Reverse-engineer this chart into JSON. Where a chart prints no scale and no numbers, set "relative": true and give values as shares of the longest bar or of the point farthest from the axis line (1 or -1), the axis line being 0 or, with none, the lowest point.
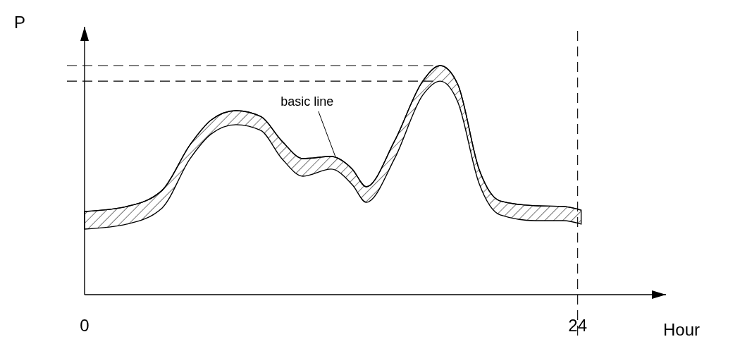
{
  "chart_data": {
    "type": "line",
    "relative": true,
    "xlabel": "Hour",
    "ylabel": "P",
    "x": [
      0,
      2.06,
      3.77,
      5.14,
      6.17,
      7.37,
      8.57,
      9.6,
      10.63,
      12.0,
      13.03,
      13.71,
      15.09,
      16.46,
      17.31,
      18.17,
      19.2,
      20.23,
      21.94,
      23.31,
      24.17
    ],
    "xlim": [
      0,
      28.3
    ],
    "xticks": [
      0,
      24
    ],
    "grid": false,
    "marker": "none",
    "line_style": "solid",
    "series": [
      {
        "color": "#000000",
        "values": [
          0.363,
          0.385,
          0.455,
          0.655,
          0.763,
          0.803,
          0.778,
          0.671,
          0.594,
          0.603,
          0.548,
          0.471,
          0.671,
          0.932,
          1,
          0.917,
          0.548,
          0.409,
          0.388,
          0.385,
          0.369
        ],
        "lower": [
          0.286,
          0.308,
          0.378,
          0.594,
          0.702,
          0.742,
          0.717,
          0.594,
          0.517,
          0.548,
          0.48,
          0.403,
          0.594,
          0.871,
          0.932,
          0.84,
          0.486,
          0.348,
          0.323,
          0.323,
          0.308
        ],
        "upper": [
          0.363,
          0.385,
          0.455,
          0.655,
          0.763,
          0.803,
          0.778,
          0.671,
          0.594,
          0.603,
          0.548,
          0.471,
          0.671,
          0.932,
          1,
          0.917,
          0.548,
          0.409,
          0.388,
          0.385,
          0.369
        ]
      }
    ],
    "ref_lines": [
      {
        "axis": "y",
        "value": 1,
        "line_style": "dashed",
        "color": "#000000"
      },
      {
        "axis": "y",
        "value": 0.932,
        "line_style": "dashed",
        "color": "#000000"
      },
      {
        "axis": "x",
        "value": 24,
        "line_style": "dashed",
        "color": "#000000"
      }
    ],
    "annotations": [
      {
        "text": "basic line",
        "x": 12.0,
        "y": 0.603
      }
    ]
  }
}
